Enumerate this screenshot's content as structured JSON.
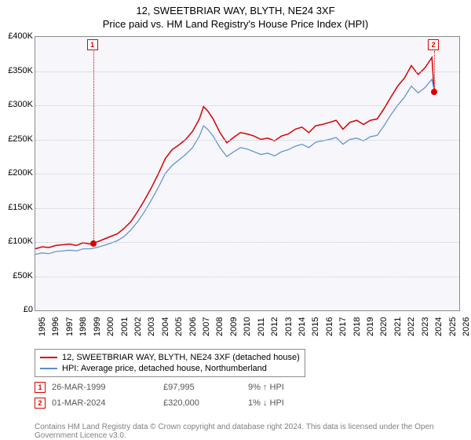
{
  "title_line1": "12, SWEETBRIAR WAY, BLYTH, NE24 3XF",
  "title_line2": "Price paid vs. HM Land Registry's House Price Index (HPI)",
  "chart": {
    "type": "line",
    "background_color": "#f6f6fb",
    "grid_color": "#c9c9d4",
    "border_color": "#8a8a8a",
    "x_years": [
      1995,
      1996,
      1997,
      1998,
      1999,
      2000,
      2001,
      2002,
      2003,
      2004,
      2005,
      2006,
      2007,
      2008,
      2009,
      2010,
      2011,
      2012,
      2013,
      2014,
      2015,
      2016,
      2017,
      2018,
      2019,
      2020,
      2021,
      2022,
      2023,
      2024,
      2025,
      2026
    ],
    "xlim": [
      1995,
      2026
    ],
    "y_ticks": [
      0,
      50000,
      100000,
      150000,
      200000,
      250000,
      300000,
      350000,
      400000
    ],
    "y_tick_labels": [
      "£0",
      "£50K",
      "£100K",
      "£150K",
      "£200K",
      "£250K",
      "£300K",
      "£350K",
      "£400K"
    ],
    "ylim": [
      0,
      400000
    ],
    "label_fontsize": 11,
    "series": [
      {
        "name": "12, SWEETBRIAR WAY, BLYTH, NE24 3XF (detached house)",
        "color": "#d90000",
        "width": 1.5,
        "points": [
          [
            1995,
            90000
          ],
          [
            1995.5,
            93000
          ],
          [
            1996,
            92000
          ],
          [
            1996.5,
            95000
          ],
          [
            1997,
            96000
          ],
          [
            1997.5,
            97000
          ],
          [
            1998,
            95000
          ],
          [
            1998.5,
            99000
          ],
          [
            1999,
            97000
          ],
          [
            1999.25,
            97995
          ],
          [
            1999.5,
            100000
          ],
          [
            2000,
            104000
          ],
          [
            2000.5,
            108000
          ],
          [
            2001,
            112000
          ],
          [
            2001.5,
            120000
          ],
          [
            2002,
            130000
          ],
          [
            2002.5,
            145000
          ],
          [
            2003,
            162000
          ],
          [
            2003.5,
            180000
          ],
          [
            2004,
            200000
          ],
          [
            2004.5,
            222000
          ],
          [
            2005,
            235000
          ],
          [
            2005.5,
            242000
          ],
          [
            2006,
            250000
          ],
          [
            2006.5,
            262000
          ],
          [
            2007,
            280000
          ],
          [
            2007.3,
            298000
          ],
          [
            2007.6,
            292000
          ],
          [
            2008,
            280000
          ],
          [
            2008.5,
            260000
          ],
          [
            2009,
            245000
          ],
          [
            2009.5,
            253000
          ],
          [
            2010,
            260000
          ],
          [
            2010.5,
            258000
          ],
          [
            2011,
            255000
          ],
          [
            2011.5,
            250000
          ],
          [
            2012,
            252000
          ],
          [
            2012.5,
            248000
          ],
          [
            2013,
            255000
          ],
          [
            2013.5,
            258000
          ],
          [
            2014,
            265000
          ],
          [
            2014.5,
            268000
          ],
          [
            2015,
            260000
          ],
          [
            2015.5,
            270000
          ],
          [
            2016,
            272000
          ],
          [
            2016.5,
            275000
          ],
          [
            2017,
            278000
          ],
          [
            2017.5,
            265000
          ],
          [
            2018,
            275000
          ],
          [
            2018.5,
            278000
          ],
          [
            2019,
            272000
          ],
          [
            2019.5,
            278000
          ],
          [
            2020,
            280000
          ],
          [
            2020.5,
            295000
          ],
          [
            2021,
            312000
          ],
          [
            2021.5,
            328000
          ],
          [
            2022,
            340000
          ],
          [
            2022.5,
            358000
          ],
          [
            2023,
            345000
          ],
          [
            2023.5,
            355000
          ],
          [
            2024,
            370000
          ],
          [
            2024.17,
            320000
          ]
        ]
      },
      {
        "name": "HPI: Average price, detached house, Northumberland",
        "color": "#5b8ec9",
        "width": 1.2,
        "points": [
          [
            1995,
            82000
          ],
          [
            1995.5,
            84000
          ],
          [
            1996,
            83000
          ],
          [
            1996.5,
            86000
          ],
          [
            1997,
            87000
          ],
          [
            1997.5,
            88000
          ],
          [
            1998,
            87000
          ],
          [
            1998.5,
            90000
          ],
          [
            1999,
            90000
          ],
          [
            1999.5,
            92000
          ],
          [
            2000,
            95000
          ],
          [
            2000.5,
            98000
          ],
          [
            2001,
            102000
          ],
          [
            2001.5,
            108000
          ],
          [
            2002,
            118000
          ],
          [
            2002.5,
            130000
          ],
          [
            2003,
            145000
          ],
          [
            2003.5,
            162000
          ],
          [
            2004,
            180000
          ],
          [
            2004.5,
            200000
          ],
          [
            2005,
            212000
          ],
          [
            2005.5,
            220000
          ],
          [
            2006,
            228000
          ],
          [
            2006.5,
            238000
          ],
          [
            2007,
            255000
          ],
          [
            2007.3,
            270000
          ],
          [
            2007.6,
            265000
          ],
          [
            2008,
            255000
          ],
          [
            2008.5,
            238000
          ],
          [
            2009,
            225000
          ],
          [
            2009.5,
            232000
          ],
          [
            2010,
            238000
          ],
          [
            2010.5,
            236000
          ],
          [
            2011,
            232000
          ],
          [
            2011.5,
            228000
          ],
          [
            2012,
            230000
          ],
          [
            2012.5,
            226000
          ],
          [
            2013,
            232000
          ],
          [
            2013.5,
            235000
          ],
          [
            2014,
            240000
          ],
          [
            2014.5,
            243000
          ],
          [
            2015,
            238000
          ],
          [
            2015.5,
            246000
          ],
          [
            2016,
            248000
          ],
          [
            2016.5,
            250000
          ],
          [
            2017,
            253000
          ],
          [
            2017.5,
            243000
          ],
          [
            2018,
            250000
          ],
          [
            2018.5,
            252000
          ],
          [
            2019,
            248000
          ],
          [
            2019.5,
            254000
          ],
          [
            2020,
            256000
          ],
          [
            2020.5,
            270000
          ],
          [
            2021,
            286000
          ],
          [
            2021.5,
            300000
          ],
          [
            2022,
            312000
          ],
          [
            2022.5,
            328000
          ],
          [
            2023,
            318000
          ],
          [
            2023.5,
            326000
          ],
          [
            2024,
            338000
          ],
          [
            2024.17,
            322000
          ]
        ]
      }
    ],
    "markers": [
      {
        "n": "1",
        "year": 1999.23,
        "value": 97995
      },
      {
        "n": "2",
        "year": 2024.17,
        "value": 320000
      }
    ]
  },
  "legend": {
    "row1": "12, SWEETBRIAR WAY, BLYTH, NE24 3XF (detached house)",
    "row2": "HPI: Average price, detached house, Northumberland"
  },
  "datapoints": [
    {
      "n": "1",
      "date": "26-MAR-1999",
      "price": "£97,995",
      "pct": "9% ↑ HPI"
    },
    {
      "n": "2",
      "date": "01-MAR-2024",
      "price": "£320,000",
      "pct": "1% ↓ HPI"
    }
  ],
  "footer": "Contains HM Land Registry data © Crown copyright and database right 2024. This data is licensed under the Open Government Licence v3.0."
}
